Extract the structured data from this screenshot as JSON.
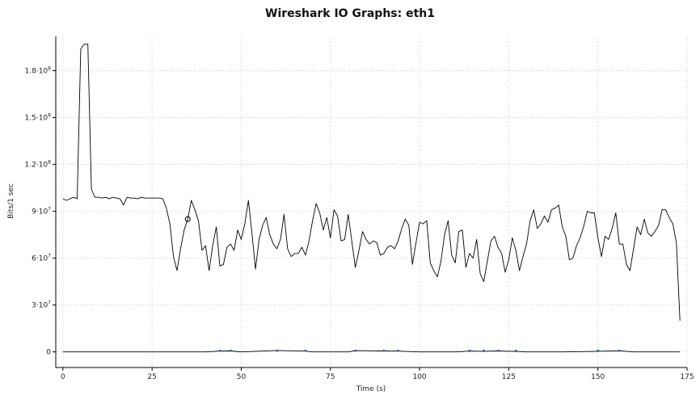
{
  "chart_data": {
    "type": "line",
    "title": "Wireshark IO Graphs: eth1",
    "xlabel": "Time (s)",
    "ylabel": "Bits/1 sec",
    "xlim": [
      -2,
      175
    ],
    "ylim": [
      -10000000,
      202000000
    ],
    "grid": true,
    "x_ticks": [
      {
        "value": 0,
        "label": "0"
      },
      {
        "value": 25,
        "label": "25"
      },
      {
        "value": 50,
        "label": "50"
      },
      {
        "value": 75,
        "label": "75"
      },
      {
        "value": 100,
        "label": "100"
      },
      {
        "value": 125,
        "label": "125"
      },
      {
        "value": 150,
        "label": "150"
      },
      {
        "value": 175,
        "label": "175"
      }
    ],
    "y_ticks": [
      {
        "value": 0,
        "label": "0",
        "exp": ""
      },
      {
        "value": 30000000,
        "label": "3·10",
        "exp": "7"
      },
      {
        "value": 60000000,
        "label": "6·10",
        "exp": "7"
      },
      {
        "value": 90000000,
        "label": "9·10",
        "exp": "7"
      },
      {
        "value": 120000000,
        "label": "1.2·10",
        "exp": "8"
      },
      {
        "value": 150000000,
        "label": "1.5·10",
        "exp": "8"
      },
      {
        "value": 180000000,
        "label": "1.8·10",
        "exp": "8"
      }
    ],
    "marker": {
      "x": 35,
      "y": 85000000
    },
    "series": [
      {
        "color": "#000000",
        "x": [
          0,
          1,
          2,
          3,
          4,
          5,
          6,
          7,
          8,
          9,
          10,
          11,
          12,
          13,
          14,
          15,
          16,
          17,
          18,
          19,
          20,
          21,
          22,
          23,
          24,
          25,
          26,
          27,
          28,
          29,
          30,
          31,
          32,
          33,
          34,
          35,
          36,
          37,
          38,
          39,
          40,
          41,
          42,
          43,
          44,
          45,
          46,
          47,
          48,
          49,
          50,
          51,
          52,
          53,
          54,
          55,
          56,
          57,
          58,
          59,
          60,
          61,
          62,
          63,
          64,
          65,
          66,
          67,
          68,
          69,
          70,
          71,
          72,
          73,
          74,
          75,
          76,
          77,
          78,
          79,
          80,
          81,
          82,
          83,
          84,
          85,
          86,
          87,
          88,
          89,
          90,
          91,
          92,
          93,
          94,
          95,
          96,
          97,
          98,
          99,
          100,
          101,
          102,
          103,
          104,
          105,
          106,
          107,
          108,
          109,
          110,
          111,
          112,
          113,
          114,
          115,
          116,
          117,
          118,
          119,
          120,
          121,
          122,
          123,
          124,
          125,
          126,
          127,
          128,
          129,
          130,
          131,
          132,
          133,
          134,
          135,
          136,
          137,
          138,
          139,
          140,
          141,
          142,
          143,
          144,
          145,
          146,
          147,
          148,
          149,
          150,
          151,
          152,
          153,
          154,
          155,
          156,
          157,
          158,
          159,
          160,
          161,
          162,
          163,
          164,
          165,
          166,
          167,
          168,
          169,
          170,
          171,
          172,
          173
        ],
        "values": [
          98000000,
          97000000,
          98000000,
          99000000,
          98000000,
          194000000,
          197000000,
          197000000,
          104000000,
          99000000,
          99000000,
          98500000,
          99000000,
          98000000,
          99000000,
          98500000,
          98000000,
          94000000,
          99000000,
          98500000,
          98500000,
          98000000,
          99000000,
          98500000,
          98500000,
          98500000,
          98500000,
          98500000,
          98000000,
          92000000,
          82000000,
          61000000,
          52000000,
          66000000,
          78000000,
          85000000,
          97000000,
          91000000,
          84000000,
          65000000,
          68000000,
          52000000,
          68000000,
          80000000,
          55000000,
          56000000,
          67000000,
          69000000,
          65000000,
          78000000,
          72000000,
          82000000,
          97000000,
          76000000,
          53000000,
          72000000,
          81000000,
          86000000,
          75000000,
          69000000,
          66000000,
          72000000,
          88000000,
          66000000,
          61000000,
          63000000,
          63000000,
          67000000,
          62000000,
          71000000,
          84000000,
          95000000,
          89000000,
          78000000,
          86000000,
          73000000,
          91000000,
          87000000,
          71000000,
          72000000,
          88000000,
          71000000,
          54000000,
          65000000,
          77000000,
          72000000,
          69000000,
          71000000,
          70000000,
          62000000,
          63000000,
          67000000,
          68000000,
          66000000,
          71000000,
          79000000,
          85000000,
          81000000,
          56000000,
          70000000,
          83000000,
          82000000,
          84000000,
          57000000,
          52000000,
          48000000,
          58000000,
          75000000,
          84000000,
          62000000,
          57000000,
          77000000,
          78000000,
          54000000,
          63000000,
          60000000,
          72000000,
          50000000,
          45000000,
          58000000,
          71000000,
          74000000,
          67000000,
          63000000,
          51000000,
          59000000,
          73000000,
          65000000,
          52000000,
          61000000,
          69000000,
          84000000,
          91000000,
          79000000,
          82000000,
          87000000,
          83000000,
          91000000,
          92000000,
          94000000,
          80000000,
          74000000,
          59000000,
          60000000,
          68000000,
          73000000,
          80000000,
          90000000,
          89000000,
          89000000,
          73000000,
          61000000,
          74000000,
          72000000,
          79000000,
          89000000,
          69000000,
          69000000,
          56000000,
          52000000,
          66000000,
          80000000,
          75000000,
          85000000,
          76000000,
          74000000,
          77000000,
          81000000,
          91000000,
          91000000,
          86000000,
          82000000,
          70000000,
          20000000
        ]
      },
      {
        "color": "#000000",
        "x": [
          0,
          10,
          20,
          30,
          40,
          44,
          47,
          50,
          60,
          68,
          70,
          80,
          82,
          90,
          94,
          100,
          110,
          114,
          118,
          122,
          127,
          130,
          140,
          150,
          156,
          160,
          165,
          173
        ],
        "values": [
          0,
          0,
          0,
          0,
          0,
          500000,
          600000,
          0,
          900000,
          500000,
          0,
          0,
          800000,
          600000,
          500000,
          0,
          0,
          500000,
          400000,
          600000,
          300000,
          0,
          0,
          400000,
          700000,
          0,
          0,
          0
        ]
      }
    ]
  }
}
